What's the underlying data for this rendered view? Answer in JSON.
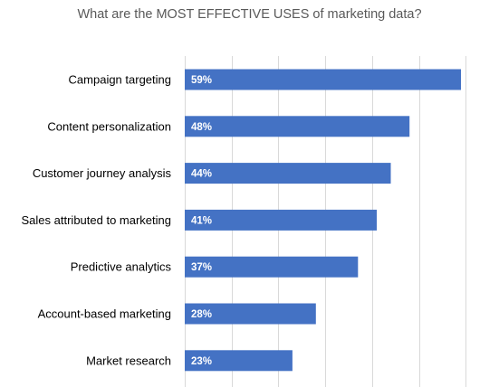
{
  "chart_data": {
    "type": "bar",
    "orientation": "horizontal",
    "title": "What are the MOST EFFECTIVE USES of marketing data?",
    "categories": [
      "Campaign targeting",
      "Content personalization",
      "Customer journey analysis",
      "Sales attributed to marketing",
      "Predictive analytics",
      "Account-based marketing",
      "Market research"
    ],
    "values": [
      59,
      48,
      44,
      41,
      37,
      28,
      23
    ],
    "value_labels": [
      "59%",
      "48%",
      "44%",
      "41%",
      "37%",
      "28%",
      "23%"
    ],
    "xlim": [
      0,
      60
    ],
    "grid": true,
    "legend": "none",
    "bar_color": "#4472c4"
  }
}
